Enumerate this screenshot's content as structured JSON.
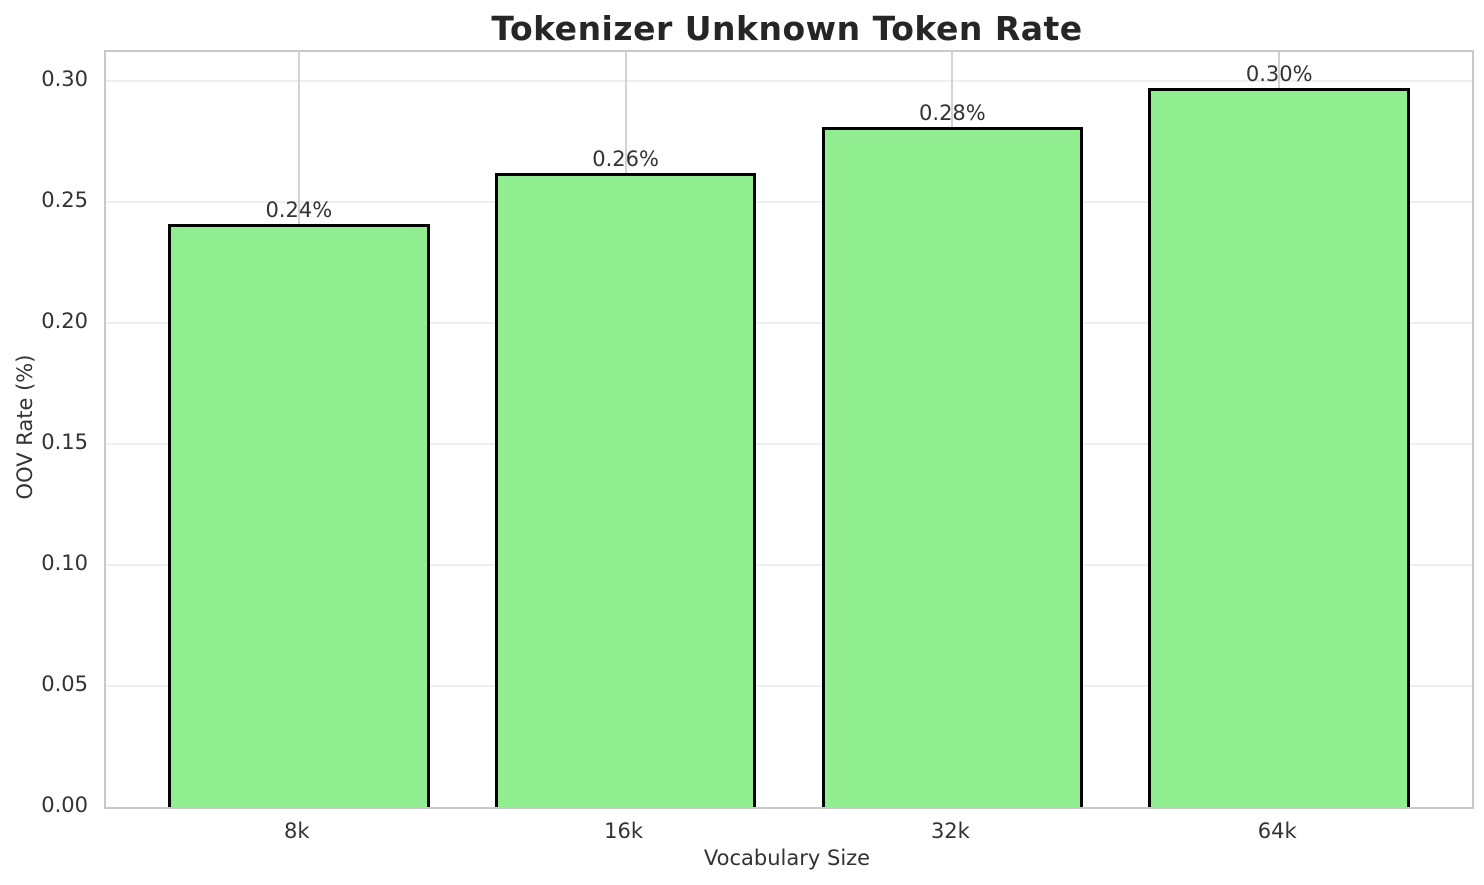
{
  "chart_data": {
    "type": "bar",
    "title": "Tokenizer Unknown Token Rate",
    "xlabel": "Vocabulary Size",
    "ylabel": "OOV Rate (%)",
    "categories": [
      "8k",
      "16k",
      "32k",
      "64k"
    ],
    "values": [
      0.241,
      0.262,
      0.281,
      0.297
    ],
    "bar_labels": [
      "0.24%",
      "0.26%",
      "0.28%",
      "0.30%"
    ],
    "y_ticks": [
      {
        "value": 0.0,
        "label": "0.00"
      },
      {
        "value": 0.05,
        "label": "0.05"
      },
      {
        "value": 0.1,
        "label": "0.10"
      },
      {
        "value": 0.15,
        "label": "0.15"
      },
      {
        "value": 0.2,
        "label": "0.20"
      },
      {
        "value": 0.25,
        "label": "0.25"
      },
      {
        "value": 0.3,
        "label": "0.30"
      }
    ],
    "ylim": [
      0,
      0.312
    ],
    "grid": true,
    "legend": "none",
    "colors": {
      "bar_fill": "#90EE90",
      "bar_edge": "#000000",
      "grid_horizontal": "#efefef",
      "grid_vertical": "#d2d2d2",
      "spine": "#c9c9c9",
      "title_text": "#262626",
      "tick_text": "#333333"
    }
  }
}
